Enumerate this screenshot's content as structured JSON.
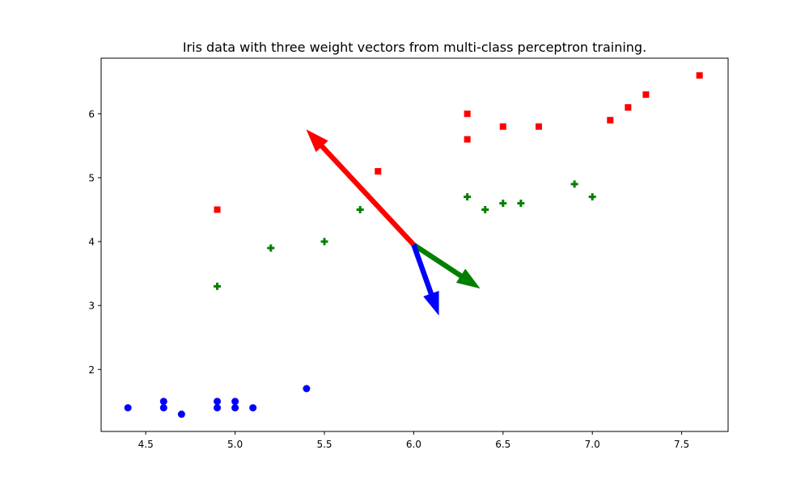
{
  "chart_data": {
    "type": "scatter",
    "title": "Iris data with three weight vectors from multi-class perceptron training.",
    "xlabel": "",
    "ylabel": "",
    "xlim": [
      4.25,
      7.76
    ],
    "ylim": [
      1.03,
      6.87
    ],
    "x_ticks": [
      "4.5",
      "5.0",
      "5.5",
      "6.0",
      "6.5",
      "7.0",
      "7.5"
    ],
    "y_ticks": [
      "2",
      "3",
      "4",
      "5",
      "6"
    ],
    "grid": false,
    "series": [
      {
        "marker": "circle",
        "color": "#0000ff",
        "points": [
          [
            4.4,
            1.4
          ],
          [
            4.6,
            1.5
          ],
          [
            4.6,
            1.4
          ],
          [
            4.7,
            1.3
          ],
          [
            4.9,
            1.5
          ],
          [
            4.9,
            1.4
          ],
          [
            5.0,
            1.5
          ],
          [
            5.0,
            1.4
          ],
          [
            5.1,
            1.4
          ],
          [
            5.4,
            1.7
          ]
        ]
      },
      {
        "marker": "plus",
        "color": "#008000",
        "points": [
          [
            4.9,
            3.3
          ],
          [
            5.2,
            3.9
          ],
          [
            5.5,
            4.0
          ],
          [
            5.7,
            4.5
          ],
          [
            6.3,
            4.7
          ],
          [
            6.4,
            4.5
          ],
          [
            6.5,
            4.6
          ],
          [
            6.6,
            4.6
          ],
          [
            6.9,
            4.9
          ],
          [
            7.0,
            4.7
          ]
        ]
      },
      {
        "marker": "square",
        "color": "#ff0000",
        "points": [
          [
            4.9,
            4.5
          ],
          [
            5.8,
            5.1
          ],
          [
            6.3,
            6.0
          ],
          [
            6.3,
            5.6
          ],
          [
            6.5,
            5.8
          ],
          [
            6.7,
            5.8
          ],
          [
            7.1,
            5.9
          ],
          [
            7.2,
            6.1
          ],
          [
            7.3,
            6.3
          ],
          [
            7.6,
            6.6
          ]
        ]
      }
    ],
    "vectors": [
      {
        "color": "#ff0000",
        "from": [
          6.0,
          3.95
        ],
        "to": [
          5.4,
          5.75
        ]
      },
      {
        "color": "#008000",
        "from": [
          6.0,
          3.95
        ],
        "to": [
          6.37,
          3.27
        ]
      },
      {
        "color": "#0000ff",
        "from": [
          6.0,
          3.95
        ],
        "to": [
          6.14,
          2.85
        ]
      }
    ]
  }
}
